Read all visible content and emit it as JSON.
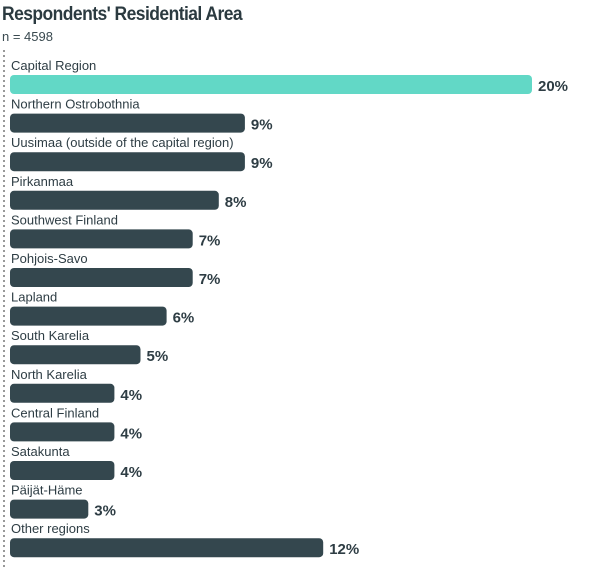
{
  "chart_data": {
    "type": "bar",
    "orientation": "horizontal",
    "title": "Respondents' Residential Area",
    "subtitle": "n = 4598",
    "categories": [
      "Capital Region",
      "Northern Ostrobothnia",
      "Uusimaa (outside of the capital region)",
      "Pirkanmaa",
      "Southwest Finland",
      "Pohjois-Savo",
      "Lapland",
      "South Karelia",
      "North Karelia",
      "Central Finland",
      "Satakunta",
      "Päijät-Häme",
      "Other regions"
    ],
    "values": [
      20,
      9,
      9,
      8,
      7,
      7,
      6,
      5,
      4,
      4,
      4,
      3,
      12
    ],
    "value_labels": [
      "20%",
      "9%",
      "9%",
      "8%",
      "7%",
      "7%",
      "6%",
      "5%",
      "4%",
      "4%",
      "4%",
      "3%",
      "12%"
    ],
    "unit": "%",
    "xlim": [
      0,
      20
    ],
    "grid": false,
    "legend": "none",
    "colors": {
      "highlight": "#62d8c6",
      "default": "#34474e",
      "text": "#2e3d44"
    }
  }
}
